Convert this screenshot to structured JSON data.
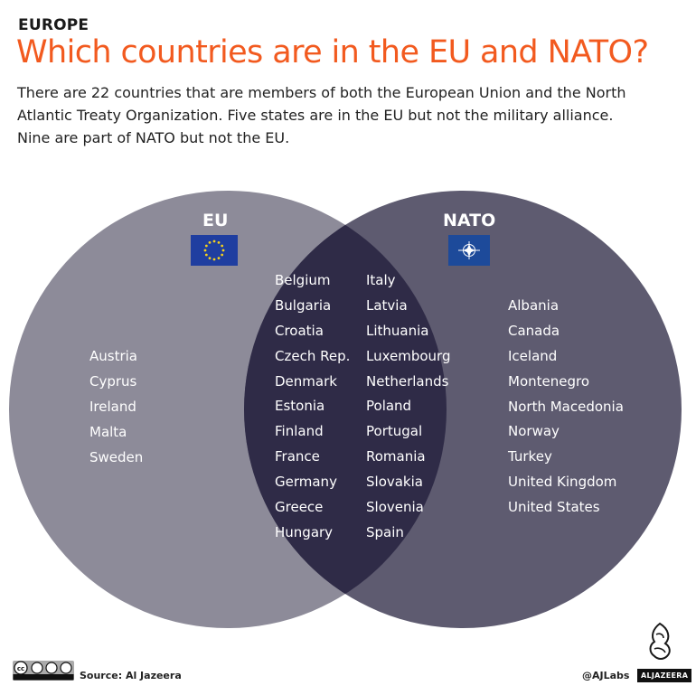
{
  "header": {
    "kicker": "EUROPE",
    "title": "Which countries are in the EU and NATO?",
    "subtitle_lines": [
      "There are 22 countries that are members of both the European Union and the North",
      "Atlantic Treaty Organization. Five states are in the EU but not the military alliance.",
      "Nine are part of NATO but not the EU."
    ]
  },
  "venn": {
    "left_label": "EU",
    "right_label": "NATO",
    "left_flag_icon": "eu-flag-icon",
    "right_flag_icon": "nato-flag-icon",
    "colors": {
      "left": "#8d8b99",
      "right": "#5e5b70",
      "overlap": "#2f2b47",
      "eu_flag": "#1f3ea0",
      "eu_stars": "#f6d11b",
      "nato_flag": "#1d4a9a"
    },
    "eu_only": [
      "Austria",
      "Cyprus",
      "Ireland",
      "Malta",
      "Sweden"
    ],
    "both_col1": [
      "Belgium",
      "Bulgaria",
      "Croatia",
      "Czech Rep.",
      "Denmark",
      "Estonia",
      "Finland",
      "France",
      "Germany",
      "Greece",
      "Hungary"
    ],
    "both_col2": [
      "Italy",
      "Latvia",
      "Lithuania",
      "Luxembourg",
      "Netherlands",
      "Poland",
      "Portugal",
      "Romania",
      "Slovakia",
      "Slovenia",
      "Spain"
    ],
    "nato_only": [
      "Albania",
      "Canada",
      "Iceland",
      "Montenegro",
      "North Macedonia",
      "Norway",
      "Turkey",
      "United Kingdom",
      "United States"
    ]
  },
  "footer": {
    "source": "Source: Al Jazeera",
    "handle": "@AJLabs",
    "brand": "ALJAZEERA",
    "license_icon": "cc-by-nc-sa-icon",
    "logo_icon": "al-jazeera-logo-icon"
  }
}
